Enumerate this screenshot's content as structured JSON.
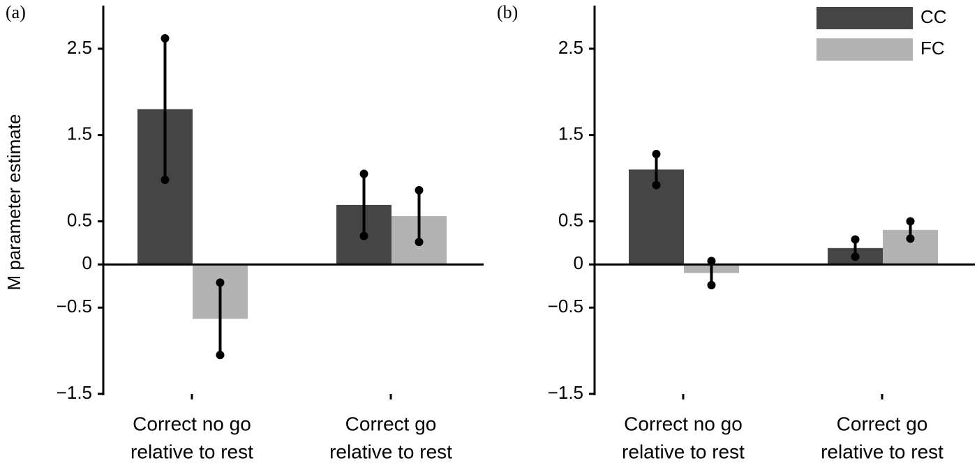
{
  "chart_data": [
    {
      "type": "bar",
      "title": "(a)",
      "y_label": "M parameter estimate",
      "categories": [
        [
          "Correct no go",
          "relative to rest"
        ],
        [
          "Correct go",
          "relative to rest"
        ]
      ],
      "series": [
        {
          "name": "CC",
          "color": "#454545",
          "values": [
            1.8,
            0.69
          ],
          "errors": [
            0.82,
            0.36
          ]
        },
        {
          "name": "FC",
          "color": "#b3b3b3",
          "values": [
            -0.63,
            0.56
          ],
          "errors": [
            0.42,
            0.3
          ]
        }
      ],
      "ylim": [
        -1.5,
        3.0
      ],
      "yticks": [
        {
          "value": -1.5,
          "label": "−1.5"
        },
        {
          "value": -0.5,
          "label": "−0.5"
        },
        0,
        0.5,
        1.5,
        2.5
      ]
    },
    {
      "type": "bar",
      "title": "(b)",
      "categories": [
        [
          "Correct no go",
          "relative to rest"
        ],
        [
          "Correct go",
          "relative to rest"
        ]
      ],
      "series": [
        {
          "name": "CC",
          "color": "#454545",
          "values": [
            1.1,
            0.19
          ],
          "errors": [
            0.18,
            0.1
          ]
        },
        {
          "name": "FC",
          "color": "#b3b3b3",
          "values": [
            -0.1,
            0.4
          ],
          "errors": [
            0.14,
            0.1
          ]
        }
      ],
      "ylim": [
        -1.5,
        3.0
      ],
      "yticks": [
        {
          "value": -1.5,
          "label": "−1.5"
        },
        {
          "value": -0.5,
          "label": "−0.5"
        },
        0,
        0.5,
        1.5,
        2.5
      ],
      "legend": "upper right"
    }
  ]
}
